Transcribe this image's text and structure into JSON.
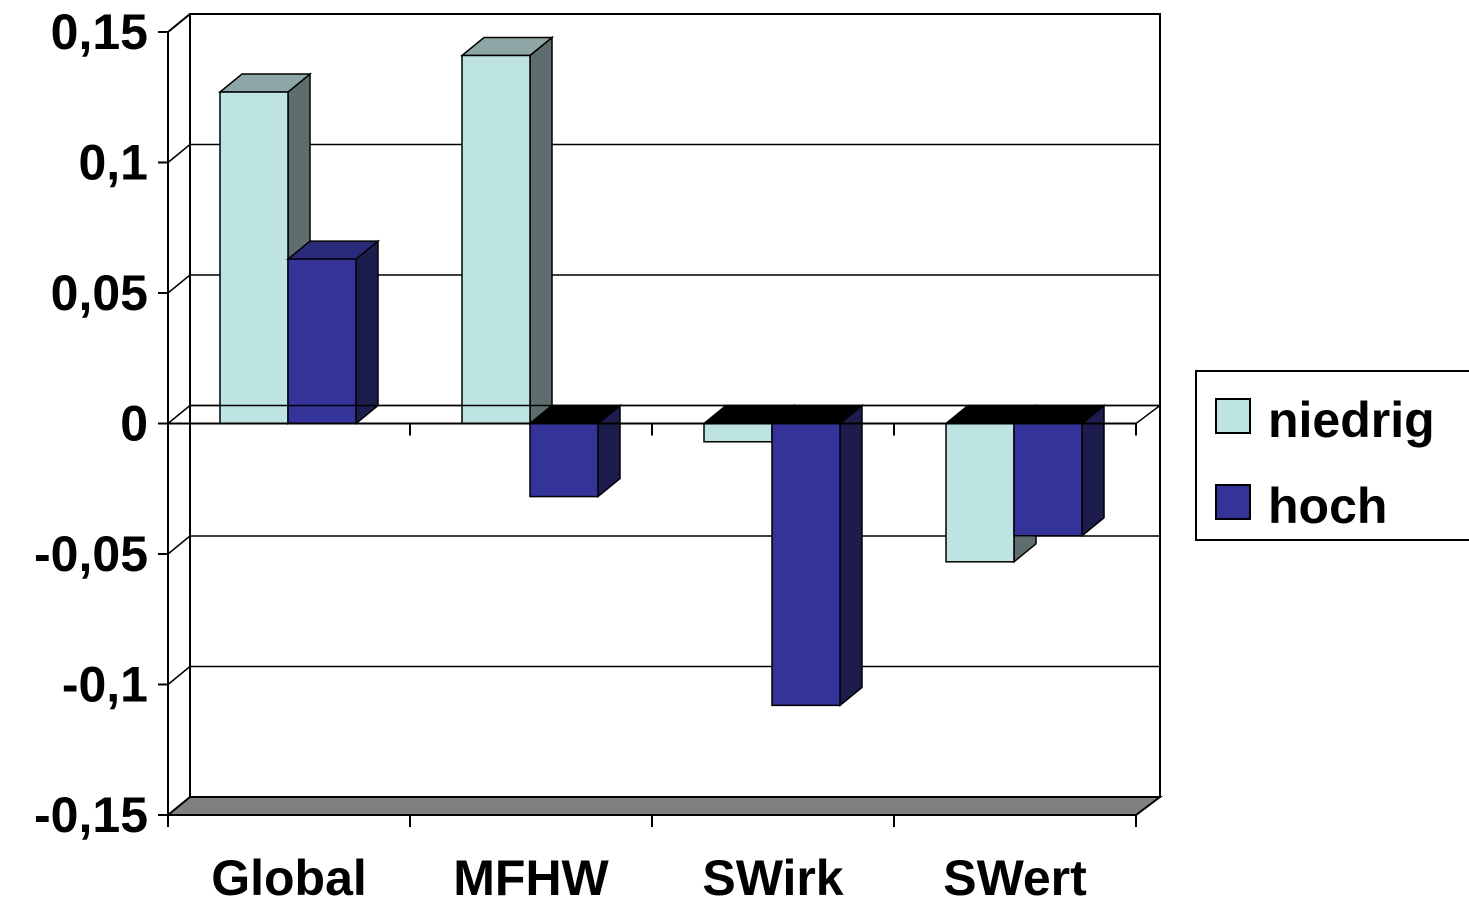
{
  "chart_data": {
    "type": "bar",
    "categories": [
      "Global",
      "MFHW",
      "SWirk",
      "SWert"
    ],
    "series": [
      {
        "name": "niedrig",
        "values": [
          0.127,
          0.141,
          -0.007,
          -0.053
        ]
      },
      {
        "name": "hoch",
        "values": [
          0.063,
          -0.028,
          -0.108,
          -0.043
        ]
      }
    ],
    "ylim": [
      -0.15,
      0.15
    ],
    "yticks": [
      0.15,
      0.1,
      0.05,
      0,
      -0.05,
      -0.1,
      -0.15
    ],
    "ytick_labels": [
      "0,15",
      "0,1",
      "0,05",
      "0",
      "-0,05",
      "-0,1",
      "-0,15"
    ],
    "title": "",
    "xlabel": "",
    "ylabel": "",
    "grid": true,
    "legend_position": "right",
    "colors": {
      "niedrig_front": "#bde3e3",
      "niedrig_side": "#5e6e6e",
      "niedrig_top": "#8fa6a6",
      "hoch_front": "#33339a",
      "hoch_side": "#1c1c4d",
      "hoch_top": "#2a2a7a",
      "floor": "#808080"
    }
  }
}
